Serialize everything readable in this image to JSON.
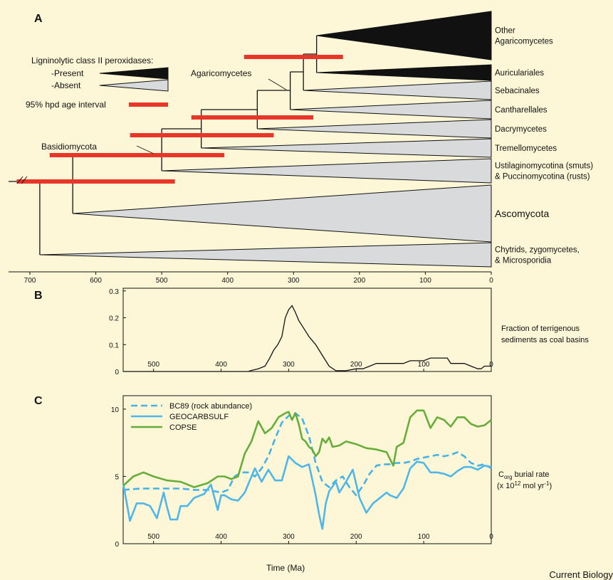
{
  "credit": "Current Biology",
  "colors": {
    "background": "#fdf7d8",
    "present_fill": "#111111",
    "absent_fill": "#d9dadc",
    "hpd_red": "#e8362a",
    "bc89_blue": "#46b2e6",
    "geocarbsulf_blue": "#4fb6e8",
    "copse_green": "#66ad3a"
  },
  "panel_a": {
    "label": "A",
    "x_ticks": [
      700,
      600,
      500,
      400,
      300,
      200,
      100,
      0
    ],
    "legend": {
      "title": "Ligninolytic  class II peroxidases:",
      "present": "-Present",
      "absent": "-Absent",
      "hpd": "95% hpd age interval"
    },
    "node_labels": {
      "basidiomycota": "Basidiomycota",
      "agaricomycetes": "Agaricomycetes"
    },
    "clades": [
      {
        "lines": [
          "Other",
          "Agaricomycetes"
        ],
        "lignin": "present"
      },
      {
        "lines": [
          "Auriculariales"
        ],
        "lignin": "present"
      },
      {
        "lines": [
          "Sebacinales"
        ],
        "lignin": "absent"
      },
      {
        "lines": [
          "Cantharellales"
        ],
        "lignin": "absent"
      },
      {
        "lines": [
          "Dacrymycetes"
        ],
        "lignin": "absent"
      },
      {
        "lines": [
          "Tremellomycetes"
        ],
        "lignin": "absent"
      },
      {
        "lines": [
          "Ustilaginomycotina (smuts)",
          "& Puccinomycotina (rusts)"
        ],
        "lignin": "absent"
      },
      {
        "lines": [
          "Ascomycota"
        ],
        "lignin": "absent"
      },
      {
        "lines": [
          "Chytrids, zygomycetes,",
          "& Microsporidia"
        ],
        "lignin": "absent"
      }
    ],
    "node_ages_ma": {
      "root": 685,
      "dikarya": 635,
      "basidiomycota": 500,
      "agaricomycotina": 440,
      "dacrymycetes_split": 355,
      "cantharellales_split": 305,
      "sebacinales_split": 285,
      "auriculariales_split": 265
    },
    "hpd_intervals_ma": [
      {
        "node": "root",
        "from": 720,
        "to": 480
      },
      {
        "node": "dikarya",
        "from": 670,
        "to": 405
      },
      {
        "node": "basidiomycota",
        "from": 548,
        "to": 330
      },
      {
        "node": "agaricomycotina",
        "from": 455,
        "to": 270
      },
      {
        "node": "cantharellales_split",
        "from": 375,
        "to": 225
      },
      {
        "node": "legend",
        "from": 0,
        "to": 0
      }
    ]
  },
  "chart_data": [
    {
      "panel": "B",
      "type": "line",
      "title": "",
      "xlabel": "",
      "ylabel": "Fraction of terrigenous sediments as coal basins",
      "x_reversed": true,
      "xlim": [
        545,
        0
      ],
      "ylim": [
        0,
        0.31
      ],
      "x_ticks": [
        500,
        400,
        300,
        200,
        100,
        0
      ],
      "y_ticks": [
        0,
        0.1,
        0.2,
        0.3
      ],
      "series": [
        {
          "x": [
            545,
            430,
            360,
            355,
            345,
            335,
            328,
            322,
            316,
            310,
            305,
            300,
            295,
            290,
            285,
            280,
            270,
            260,
            250,
            240,
            230,
            215,
            200,
            190,
            180,
            170,
            160,
            140,
            130,
            120,
            100,
            90,
            85,
            65,
            60,
            40,
            30,
            20,
            15,
            10,
            5,
            0
          ],
          "y": [
            0,
            0,
            0,
            0.004,
            0.01,
            0.02,
            0.05,
            0.08,
            0.1,
            0.13,
            0.2,
            0.23,
            0.245,
            0.22,
            0.19,
            0.17,
            0.13,
            0.1,
            0.06,
            0.02,
            0.003,
            0.003,
            0.01,
            0.01,
            0.02,
            0.03,
            0.03,
            0.03,
            0.03,
            0.04,
            0.04,
            0.05,
            0.05,
            0.05,
            0.03,
            0.03,
            0.02,
            0.01,
            0.01,
            0.02,
            0.02,
            0.02
          ]
        }
      ]
    },
    {
      "panel": "C",
      "type": "line",
      "title": "",
      "xlabel": "Time (Ma)",
      "ylabel_main": "C",
      "ylabel_sub": "org",
      "ylabel_rest": " burial rate",
      "ylabel_unit_a": "(x 10",
      "ylabel_unit_exp": "12",
      "ylabel_unit_b": " mol yr",
      "ylabel_unit_exp2": "-1",
      "ylabel_unit_c": ")",
      "x_reversed": true,
      "xlim": [
        545,
        0
      ],
      "ylim": [
        0,
        11
      ],
      "x_ticks": [
        500,
        400,
        300,
        200,
        100,
        0
      ],
      "y_ticks": [
        0,
        5,
        10
      ],
      "legend_position": "top-left",
      "series": [
        {
          "name": "BC89 (rock abundance)",
          "style": "dashed",
          "color": "#46b2e6",
          "x": [
            545,
            520,
            500,
            460,
            440,
            420,
            400,
            390,
            380,
            370,
            360,
            350,
            340,
            330,
            320,
            310,
            300,
            290,
            280,
            270,
            260,
            250,
            240,
            230,
            220,
            210,
            200,
            190,
            180,
            170,
            160,
            150,
            140,
            130,
            120,
            110,
            100,
            90,
            80,
            70,
            60,
            50,
            40,
            30,
            20,
            10,
            0
          ],
          "y": [
            4.0,
            4.1,
            4.1,
            4.1,
            4.0,
            4.0,
            3.8,
            4.0,
            5.0,
            5.3,
            5.3,
            5.0,
            5.6,
            6.5,
            7.8,
            9.0,
            9.5,
            9.7,
            9.3,
            8.0,
            6.0,
            4.6,
            4.2,
            4.7,
            5.0,
            4.2,
            3.6,
            4.3,
            5.2,
            5.8,
            5.9,
            5.9,
            6.0,
            6.0,
            6.1,
            6.3,
            6.4,
            6.5,
            6.6,
            6.5,
            6.6,
            6.8,
            6.5,
            6.0,
            5.8,
            5.9,
            5.6
          ]
        },
        {
          "name": "GEOCARBSULF",
          "style": "solid",
          "color": "#4fb6e8",
          "x": [
            545,
            535,
            525,
            515,
            505,
            495,
            485,
            480,
            475,
            465,
            460,
            450,
            440,
            425,
            415,
            405,
            400,
            395,
            385,
            375,
            365,
            350,
            340,
            330,
            320,
            310,
            300,
            290,
            280,
            270,
            260,
            255,
            250,
            245,
            240,
            230,
            225,
            215,
            205,
            195,
            185,
            175,
            165,
            155,
            150,
            140,
            130,
            120,
            110,
            100,
            90,
            80,
            70,
            60,
            50,
            40,
            30,
            20,
            10,
            0
          ],
          "y": [
            4.5,
            1.7,
            3.0,
            3.0,
            2.8,
            1.9,
            3.8,
            2.7,
            1.8,
            1.8,
            2.8,
            2.8,
            3.4,
            3.7,
            4.4,
            2.5,
            3.6,
            3.6,
            3.3,
            3.2,
            3.8,
            5.6,
            4.6,
            5.5,
            4.7,
            4.7,
            6.5,
            6.0,
            5.7,
            5.9,
            3.6,
            2.2,
            1.1,
            3.0,
            3.9,
            4.6,
            3.8,
            4.6,
            5.5,
            3.4,
            2.3,
            3.0,
            3.4,
            3.8,
            3.6,
            3.4,
            4.1,
            5.6,
            6.1,
            6.0,
            5.3,
            5.3,
            5.2,
            5.0,
            5.4,
            5.7,
            5.7,
            5.5,
            5.8,
            5.7
          ]
        },
        {
          "name": "COPSE",
          "style": "solid",
          "color": "#66ad3a",
          "x": [
            545,
            530,
            515,
            500,
            480,
            460,
            440,
            420,
            405,
            395,
            385,
            375,
            365,
            355,
            345,
            335,
            325,
            315,
            305,
            300,
            295,
            290,
            285,
            280,
            275,
            270,
            265,
            260,
            255,
            250,
            245,
            240,
            235,
            225,
            215,
            200,
            185,
            170,
            155,
            145,
            140,
            130,
            120,
            110,
            100,
            90,
            80,
            70,
            60,
            50,
            40,
            30,
            20,
            10,
            0
          ],
          "y": [
            4.3,
            5.0,
            5.3,
            5.0,
            4.7,
            4.6,
            4.2,
            4.5,
            5.0,
            5.0,
            4.8,
            5.0,
            6.7,
            7.6,
            9.1,
            8.2,
            8.6,
            9.4,
            9.7,
            9.8,
            9.2,
            9.7,
            8.9,
            7.8,
            7.6,
            7.2,
            7.0,
            6.5,
            6.8,
            7.8,
            7.5,
            7.9,
            7.2,
            7.3,
            7.6,
            7.4,
            7.1,
            7.0,
            6.8,
            5.8,
            7.2,
            7.5,
            9.4,
            9.9,
            9.9,
            8.6,
            9.4,
            9.2,
            8.7,
            9.4,
            9.4,
            8.9,
            8.7,
            8.8,
            9.2
          ]
        }
      ]
    }
  ]
}
